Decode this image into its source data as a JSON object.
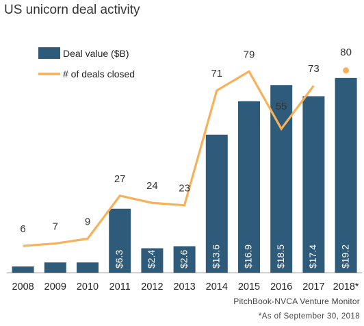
{
  "chart_data": {
    "type": "bar",
    "title": "US unicorn deal activity",
    "categories": [
      "2008",
      "2009",
      "2010",
      "2011",
      "2012",
      "2013",
      "2014",
      "2015",
      "2016",
      "2017",
      "2018*"
    ],
    "series": [
      {
        "name": "Deal value ($B)",
        "type": "bar",
        "values": [
          0.6,
          1.0,
          1.0,
          6.3,
          2.4,
          2.6,
          13.6,
          16.9,
          18.5,
          17.4,
          19.2
        ],
        "labels": [
          "",
          "",
          "",
          "$6.3",
          "$2.4",
          "$2.6",
          "$13.6",
          "$16.9",
          "$18.5",
          "$17.4",
          "$19.2"
        ],
        "color": "#2e5b7a"
      },
      {
        "name": "# of deals closed",
        "type": "line",
        "values": [
          6,
          7,
          9,
          27,
          24,
          23,
          71,
          79,
          55,
          73,
          80
        ],
        "color": "#f6b15a"
      }
    ],
    "legend_position": "top-left",
    "grid": false,
    "xlabel": "",
    "ylabel": ""
  },
  "footer": {
    "source": "PitchBook-NVCA Venture Monitor",
    "note": "*As of September 30, 2018"
  }
}
